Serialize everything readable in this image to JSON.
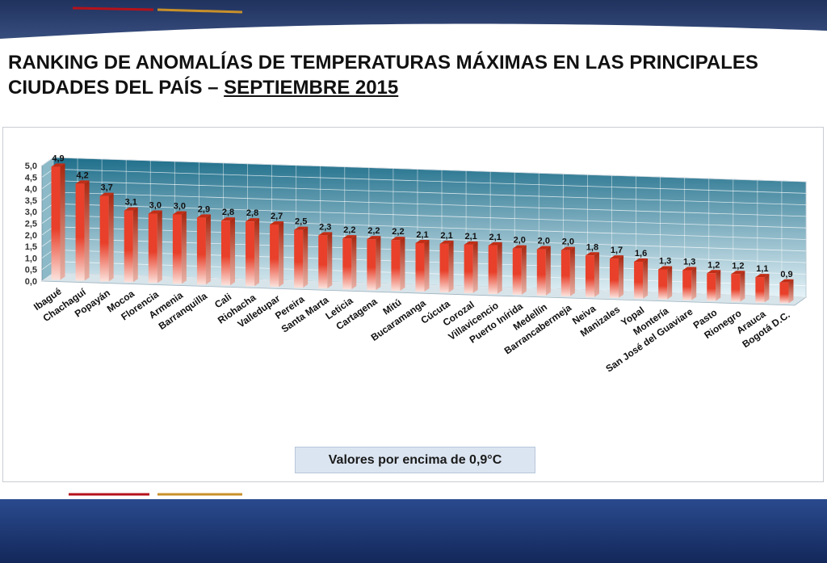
{
  "title": {
    "line1": "RANKING DE ANOMALÍAS DE TEMPERATURAS MÁXIMAS EN LAS PRINCIPALES",
    "line2a": "CIUDADES DEL PAÍS – ",
    "line2b": "SEPTIEMBRE 2015"
  },
  "note": "Valores por encima de 0,9°C",
  "colors": {
    "bar": "#e8402a",
    "bar_light": "#fbe2dc",
    "wall_top": "#1f6f8b",
    "wall_bottom": "#e6f3f8",
    "header_band": "#2b3e6b",
    "footer_band": "#1f3a7a",
    "accent_red": "#b5121b"
  },
  "chart_data": {
    "type": "bar",
    "title": "",
    "xlabel": "",
    "ylabel": "",
    "ylim": [
      0,
      5
    ],
    "yticks": [
      "0,0",
      "0,5",
      "1,0",
      "1,5",
      "2,0",
      "2,5",
      "3,0",
      "3,5",
      "4,0",
      "4,5",
      "5,0"
    ],
    "grid": true,
    "legend": "none",
    "categories": [
      "Ibagué",
      "Chachaguí",
      "Popayán",
      "Mocoa",
      "Florencia",
      "Armenia",
      "Barranquilla",
      "Cali",
      "Riohacha",
      "Valledupar",
      "Pereira",
      "Santa Marta",
      "Leticia",
      "Cartagena",
      "Mitú",
      "Bucaramanga",
      "Cúcuta",
      "Corozal",
      "Villavicencio",
      "Puerto Inírida",
      "Medellín",
      "Barrancabermeja",
      "Neiva",
      "Manizales",
      "Yopal",
      "Montería",
      "San José del Guaviare",
      "Pasto",
      "Rionegro",
      "Arauca",
      "Bogotá D.C."
    ],
    "values": [
      4.9,
      4.2,
      3.7,
      3.1,
      3.0,
      3.0,
      2.9,
      2.8,
      2.8,
      2.7,
      2.5,
      2.3,
      2.2,
      2.2,
      2.2,
      2.1,
      2.1,
      2.1,
      2.1,
      2.0,
      2.0,
      2.0,
      1.8,
      1.7,
      1.6,
      1.3,
      1.3,
      1.2,
      1.2,
      1.1,
      0.9
    ],
    "value_labels": [
      "4,9",
      "4,2",
      "3,7",
      "3,1",
      "3,0",
      "3,0",
      "2,9",
      "2,8",
      "2,8",
      "2,7",
      "2,5",
      "2,3",
      "2,2",
      "2,2",
      "2,2",
      "2,1",
      "2,1",
      "2,1",
      "2,1",
      "2,0",
      "2,0",
      "2,0",
      "1,8",
      "1,7",
      "1,6",
      "1,3",
      "1,3",
      "1,2",
      "1,2",
      "1,1",
      "0,9"
    ]
  }
}
